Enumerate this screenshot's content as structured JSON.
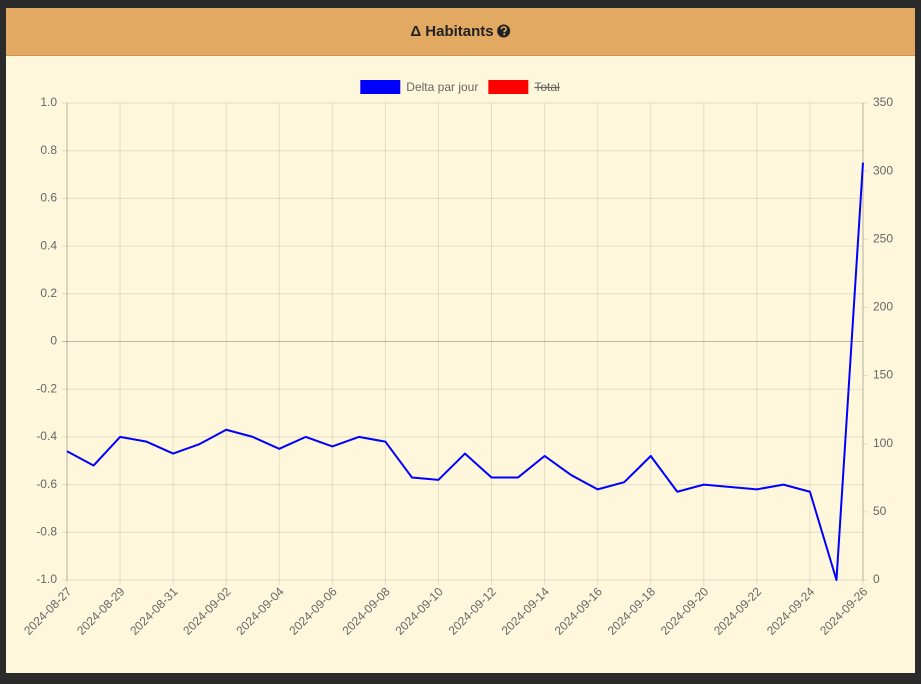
{
  "chart_data": {
    "type": "line",
    "title": "Δ Habitants",
    "categories": [
      "2024-08-27",
      null,
      "2024-08-29",
      null,
      "2024-08-31",
      null,
      "2024-09-02",
      null,
      "2024-09-04",
      null,
      "2024-09-06",
      null,
      "2024-09-08",
      null,
      "2024-09-10",
      null,
      "2024-09-12",
      null,
      "2024-09-14",
      null,
      "2024-09-16",
      null,
      "2024-09-18",
      null,
      "2024-09-20",
      null,
      "2024-09-22",
      null,
      "2024-09-24",
      null,
      "2024-09-26"
    ],
    "series": [
      {
        "name": "Delta par jour",
        "color": "#0000ff",
        "values": [
          -0.46,
          -0.52,
          -0.4,
          -0.42,
          -0.47,
          -0.43,
          -0.37,
          -0.4,
          -0.45,
          -0.4,
          -0.44,
          -0.4,
          -0.42,
          -0.57,
          -0.58,
          -0.47,
          -0.57,
          -0.57,
          -0.48,
          -0.56,
          -0.62,
          -0.59,
          -0.48,
          -0.63,
          -0.6,
          -0.61,
          -0.62,
          -0.6,
          -0.63,
          -1.0,
          0.75
        ]
      },
      {
        "name": "Total",
        "color": "#ff0000",
        "axis": "y2",
        "hidden": true
      }
    ],
    "ylim": [
      -1,
      1
    ],
    "yticks": [
      {
        "value": -1,
        "label": "-1.0"
      },
      -0.8,
      -0.6,
      -0.4,
      -0.2,
      0,
      0.2,
      0.4,
      0.6,
      0.8,
      {
        "value": 1,
        "label": "1.0"
      }
    ],
    "y2lim": [
      0,
      350
    ],
    "y2ticks": [
      0,
      50,
      100,
      150,
      200,
      250,
      300,
      350
    ],
    "grid": true,
    "legend": "top"
  }
}
